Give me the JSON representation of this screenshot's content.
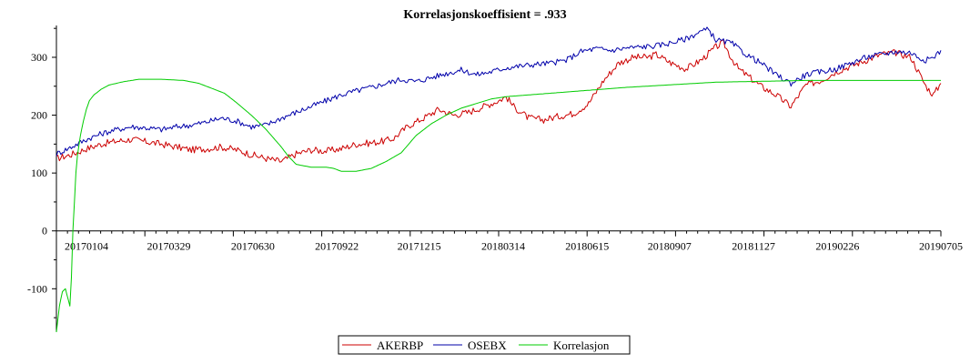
{
  "chart_data": {
    "type": "line",
    "title": "Korrelasjonskoeffisient =  .933",
    "xlabel": "",
    "ylabel": "",
    "ylim": [
      -175,
      355
    ],
    "xlim": [
      0,
      590
    ],
    "x_ticks": [
      {
        "x": 20,
        "label": "20170104"
      },
      {
        "x": 75,
        "label": "20170329"
      },
      {
        "x": 131,
        "label": "20170630"
      },
      {
        "x": 187,
        "label": "20170922"
      },
      {
        "x": 242,
        "label": "20171215"
      },
      {
        "x": 298,
        "label": "20180314"
      },
      {
        "x": 354,
        "label": "20180615"
      },
      {
        "x": 409,
        "label": "20180907"
      },
      {
        "x": 465,
        "label": "20181127"
      },
      {
        "x": 521,
        "label": "20190226"
      },
      {
        "x": 590,
        "label": "20190705"
      }
    ],
    "y_ticks": [
      -100,
      0,
      100,
      200,
      300
    ],
    "legend_position": "bottom-center",
    "series": [
      {
        "name": "AKERBP",
        "color": "#cc0000",
        "points": [
          [
            0,
            125
          ],
          [
            10,
            132
          ],
          [
            20,
            142
          ],
          [
            30,
            150
          ],
          [
            40,
            155
          ],
          [
            50,
            158
          ],
          [
            60,
            154
          ],
          [
            70,
            150
          ],
          [
            80,
            145
          ],
          [
            90,
            140
          ],
          [
            100,
            142
          ],
          [
            110,
            145
          ],
          [
            120,
            140
          ],
          [
            130,
            132
          ],
          [
            140,
            125
          ],
          [
            150,
            120
          ],
          [
            160,
            133
          ],
          [
            170,
            140
          ],
          [
            180,
            138
          ],
          [
            190,
            142
          ],
          [
            200,
            150
          ],
          [
            210,
            152
          ],
          [
            220,
            156
          ],
          [
            225,
            160
          ],
          [
            235,
            182
          ],
          [
            245,
            195
          ],
          [
            255,
            210
          ],
          [
            265,
            200
          ],
          [
            275,
            205
          ],
          [
            285,
            215
          ],
          [
            295,
            225
          ],
          [
            300,
            232
          ],
          [
            305,
            215
          ],
          [
            315,
            195
          ],
          [
            325,
            192
          ],
          [
            335,
            198
          ],
          [
            345,
            203
          ],
          [
            355,
            220
          ],
          [
            365,
            260
          ],
          [
            375,
            290
          ],
          [
            385,
            300
          ],
          [
            395,
            300
          ],
          [
            400,
            305
          ],
          [
            410,
            290
          ],
          [
            420,
            280
          ],
          [
            430,
            295
          ],
          [
            440,
            318
          ],
          [
            445,
            325
          ],
          [
            450,
            300
          ],
          [
            455,
            280
          ],
          [
            460,
            270
          ],
          [
            470,
            250
          ],
          [
            480,
            235
          ],
          [
            490,
            215
          ],
          [
            500,
            252
          ],
          [
            510,
            260
          ],
          [
            520,
            275
          ],
          [
            530,
            285
          ],
          [
            540,
            295
          ],
          [
            550,
            305
          ],
          [
            560,
            308
          ],
          [
            570,
            300
          ],
          [
            575,
            275
          ],
          [
            580,
            250
          ],
          [
            585,
            235
          ],
          [
            590,
            255
          ]
        ]
      },
      {
        "name": "OSEBX",
        "color": "#0000aa",
        "points": [
          [
            0,
            133
          ],
          [
            10,
            145
          ],
          [
            20,
            158
          ],
          [
            30,
            168
          ],
          [
            40,
            175
          ],
          [
            50,
            180
          ],
          [
            60,
            178
          ],
          [
            70,
            175
          ],
          [
            80,
            180
          ],
          [
            90,
            183
          ],
          [
            100,
            188
          ],
          [
            110,
            195
          ],
          [
            120,
            190
          ],
          [
            130,
            180
          ],
          [
            140,
            183
          ],
          [
            150,
            195
          ],
          [
            160,
            205
          ],
          [
            170,
            215
          ],
          [
            180,
            225
          ],
          [
            190,
            235
          ],
          [
            200,
            242
          ],
          [
            210,
            248
          ],
          [
            220,
            255
          ],
          [
            230,
            262
          ],
          [
            240,
            258
          ],
          [
            250,
            265
          ],
          [
            260,
            272
          ],
          [
            270,
            278
          ],
          [
            280,
            270
          ],
          [
            290,
            275
          ],
          [
            300,
            282
          ],
          [
            310,
            285
          ],
          [
            320,
            288
          ],
          [
            330,
            290
          ],
          [
            340,
            295
          ],
          [
            350,
            310
          ],
          [
            360,
            315
          ],
          [
            370,
            312
          ],
          [
            380,
            316
          ],
          [
            390,
            318
          ],
          [
            400,
            320
          ],
          [
            410,
            325
          ],
          [
            420,
            332
          ],
          [
            430,
            345
          ],
          [
            435,
            348
          ],
          [
            440,
            330
          ],
          [
            450,
            325
          ],
          [
            460,
            305
          ],
          [
            470,
            290
          ],
          [
            480,
            270
          ],
          [
            490,
            255
          ],
          [
            500,
            270
          ],
          [
            510,
            275
          ],
          [
            520,
            280
          ],
          [
            530,
            290
          ],
          [
            540,
            300
          ],
          [
            550,
            305
          ],
          [
            560,
            310
          ],
          [
            570,
            308
          ],
          [
            575,
            300
          ],
          [
            580,
            295
          ],
          [
            585,
            300
          ],
          [
            590,
            312
          ]
        ]
      },
      {
        "name": "Korrelasjon",
        "color": "#00cc00",
        "points": [
          [
            0,
            -175
          ],
          [
            2,
            -130
          ],
          [
            4,
            -105
          ],
          [
            6,
            -100
          ],
          [
            8,
            -120
          ],
          [
            9,
            -130
          ],
          [
            10,
            -80
          ],
          [
            11,
            0
          ],
          [
            12,
            50
          ],
          [
            13,
            100
          ],
          [
            14,
            130
          ],
          [
            16,
            165
          ],
          [
            18,
            190
          ],
          [
            20,
            210
          ],
          [
            22,
            225
          ],
          [
            25,
            235
          ],
          [
            30,
            245
          ],
          [
            35,
            252
          ],
          [
            45,
            258
          ],
          [
            55,
            262
          ],
          [
            70,
            262
          ],
          [
            85,
            260
          ],
          [
            95,
            255
          ],
          [
            105,
            245
          ],
          [
            112,
            238
          ],
          [
            120,
            222
          ],
          [
            130,
            200
          ],
          [
            140,
            175
          ],
          [
            150,
            145
          ],
          [
            155,
            128
          ],
          [
            160,
            115
          ],
          [
            170,
            110
          ],
          [
            180,
            110
          ],
          [
            185,
            108
          ],
          [
            190,
            103
          ],
          [
            200,
            103
          ],
          [
            210,
            108
          ],
          [
            220,
            120
          ],
          [
            230,
            135
          ],
          [
            240,
            165
          ],
          [
            250,
            185
          ],
          [
            260,
            200
          ],
          [
            270,
            212
          ],
          [
            280,
            220
          ],
          [
            290,
            228
          ],
          [
            300,
            232
          ],
          [
            320,
            236
          ],
          [
            340,
            240
          ],
          [
            360,
            244
          ],
          [
            380,
            248
          ],
          [
            400,
            251
          ],
          [
            420,
            254
          ],
          [
            440,
            257
          ],
          [
            460,
            258
          ],
          [
            480,
            259
          ],
          [
            500,
            260
          ],
          [
            520,
            260
          ],
          [
            540,
            260
          ],
          [
            560,
            260
          ],
          [
            590,
            260
          ]
        ]
      }
    ]
  }
}
